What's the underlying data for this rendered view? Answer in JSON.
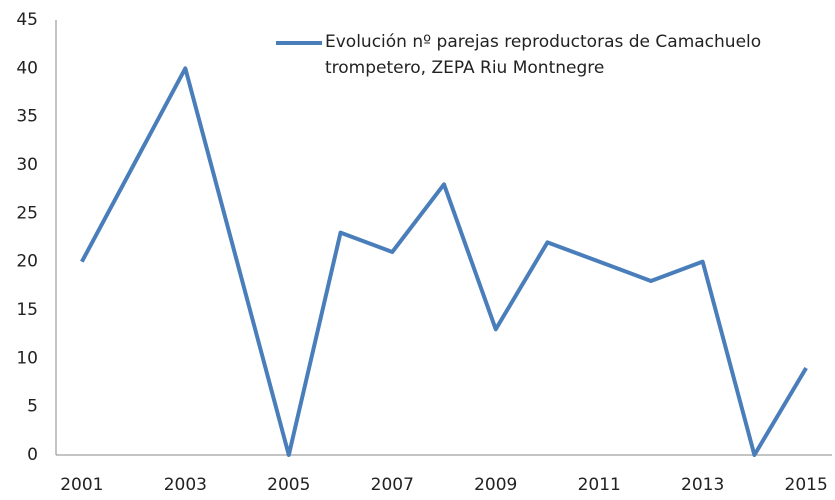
{
  "chart_data": {
    "type": "line",
    "x": [
      2001,
      2002,
      2003,
      2004,
      2005,
      2006,
      2007,
      2008,
      2009,
      2010,
      2011,
      2012,
      2013,
      2014,
      2015
    ],
    "series": [
      {
        "name": "Evolución nº parejas reproductoras de Camachuelo trompetero, ZEPA Riu Montnegre",
        "color": "#4a7ebb",
        "values": [
          20,
          30,
          40,
          20,
          0,
          23,
          21,
          28,
          13,
          22,
          20,
          18,
          20,
          0,
          9
        ]
      }
    ],
    "xlim": [
      2000.5,
      2015.5
    ],
    "xticks": [
      2001,
      2003,
      2005,
      2007,
      2009,
      2011,
      2013,
      2015
    ],
    "ylim": [
      0,
      45
    ],
    "yticks": [
      0,
      5,
      10,
      15,
      20,
      25,
      30,
      35,
      40,
      45
    ],
    "grid": false,
    "legend": "top-right"
  }
}
